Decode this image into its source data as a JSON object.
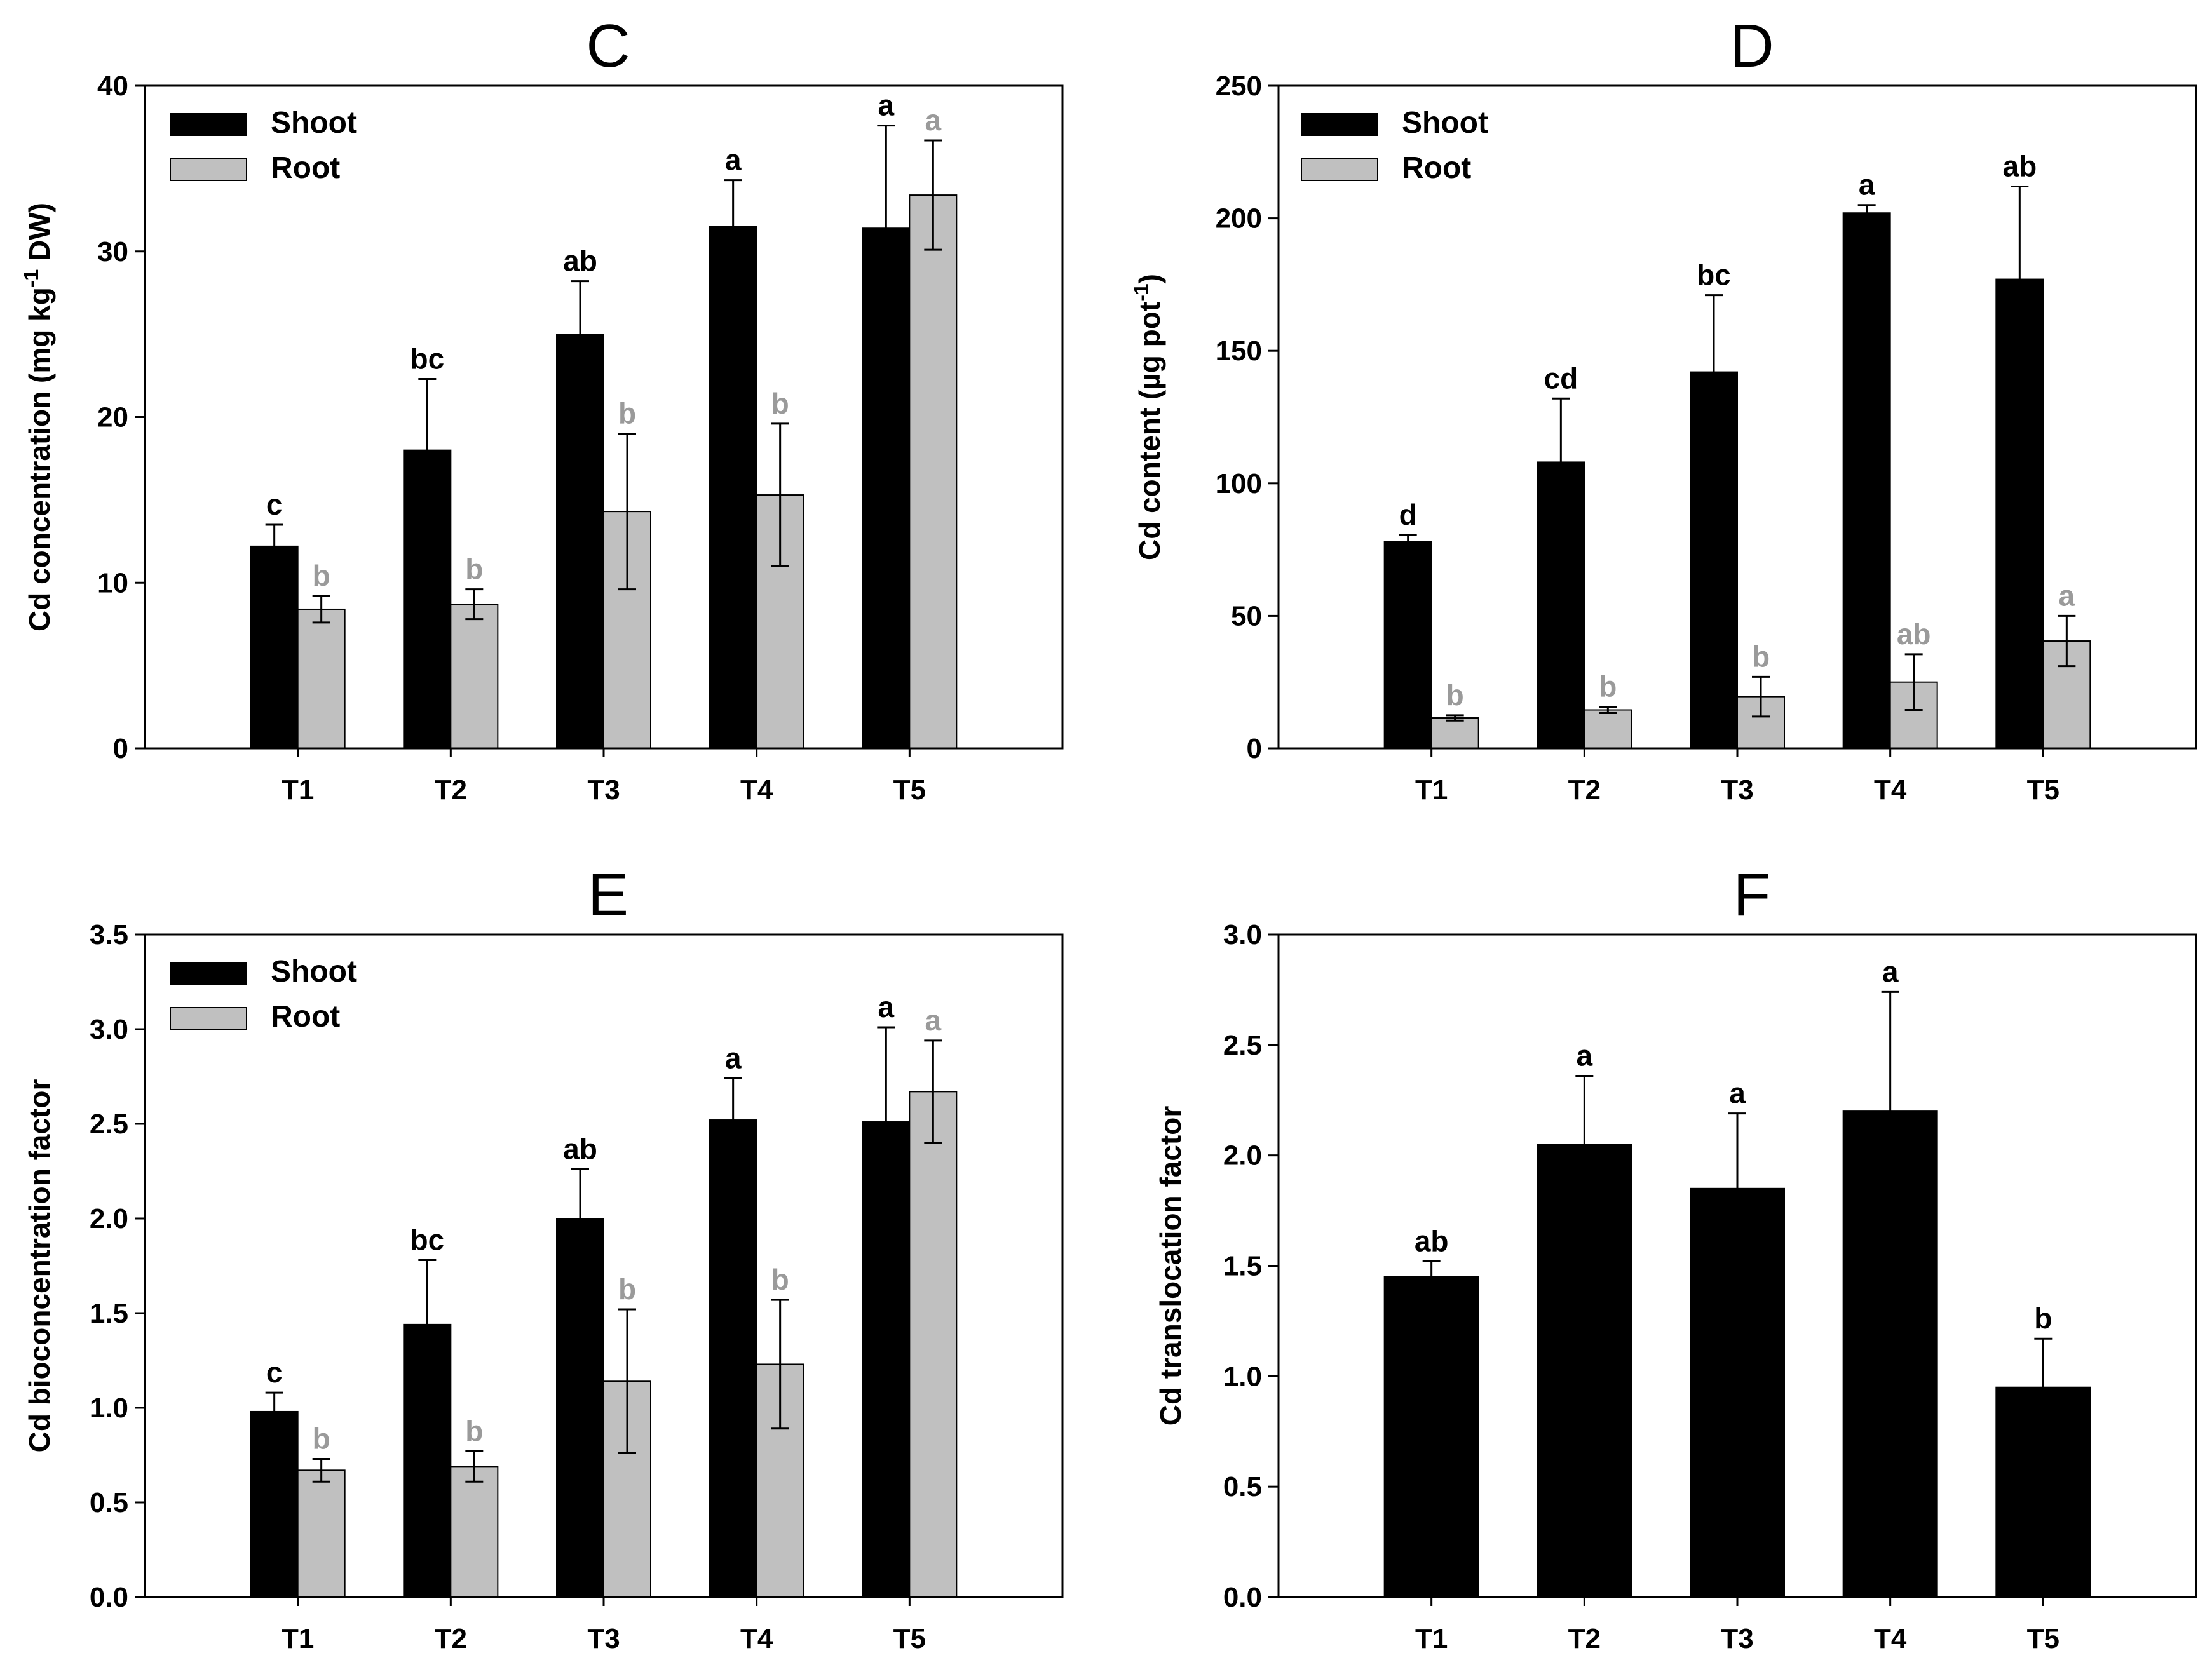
{
  "colors": {
    "shoot": "#000000",
    "root": "#c0c0c0",
    "root_letter": "#9a9a9a",
    "axis": "#000000"
  },
  "chart_data": [
    {
      "id": "C",
      "type": "bar",
      "title": "C",
      "ylabel_parts": [
        {
          "text": "Cd concentration (mg kg"
        },
        {
          "text": "-1",
          "sup": true
        },
        {
          "text": " DW)"
        }
      ],
      "categories": [
        "T1",
        "T2",
        "T3",
        "T4",
        "T5"
      ],
      "ylim": [
        0,
        40
      ],
      "yticks": [
        0,
        10,
        20,
        30,
        40
      ],
      "ytick_labels": [
        "0",
        "10",
        "20",
        "30",
        "40"
      ],
      "legend": {
        "position": "top-left",
        "entries": [
          "Shoot",
          "Root"
        ]
      },
      "series": [
        {
          "name": "Shoot",
          "values": [
            12.2,
            18.0,
            25.0,
            31.5,
            31.4
          ],
          "errors": [
            1.3,
            4.3,
            3.2,
            2.8,
            6.2
          ],
          "letters": [
            "c",
            "bc",
            "ab",
            "a",
            "a"
          ]
        },
        {
          "name": "Root",
          "values": [
            8.4,
            8.7,
            14.3,
            15.3,
            33.4
          ],
          "errors": [
            0.8,
            0.9,
            4.7,
            4.3,
            3.3
          ],
          "letters": [
            "b",
            "b",
            "b",
            "b",
            "a"
          ]
        }
      ]
    },
    {
      "id": "D",
      "type": "bar",
      "title": "D",
      "ylabel_parts": [
        {
          "text": "Cd content (µg pot"
        },
        {
          "text": "-1",
          "sup": true
        },
        {
          "text": ")"
        }
      ],
      "categories": [
        "T1",
        "T2",
        "T3",
        "T4",
        "T5"
      ],
      "ylim": [
        0,
        250
      ],
      "yticks": [
        0,
        50,
        100,
        150,
        200,
        250
      ],
      "ytick_labels": [
        "0",
        "50",
        "100",
        "150",
        "200",
        "250"
      ],
      "legend": {
        "position": "top-left",
        "entries": [
          "Shoot",
          "Root"
        ]
      },
      "series": [
        {
          "name": "Shoot",
          "values": [
            78,
            108,
            142,
            202,
            177
          ],
          "errors": [
            2.5,
            24,
            29,
            3,
            35
          ],
          "letters": [
            "d",
            "cd",
            "bc",
            "a",
            "ab"
          ]
        },
        {
          "name": "Root",
          "values": [
            11.5,
            14.5,
            19.5,
            25,
            40.5
          ],
          "errors": [
            1,
            1.2,
            7.5,
            10.5,
            9.5
          ],
          "letters": [
            "b",
            "b",
            "b",
            "ab",
            "a"
          ]
        }
      ]
    },
    {
      "id": "E",
      "type": "bar",
      "title": "E",
      "ylabel_parts": [
        {
          "text": "Cd bioconcentration factor"
        }
      ],
      "categories": [
        "T1",
        "T2",
        "T3",
        "T4",
        "T5"
      ],
      "ylim": [
        0,
        3.5
      ],
      "yticks": [
        0,
        0.5,
        1.0,
        1.5,
        2.0,
        2.5,
        3.0,
        3.5
      ],
      "ytick_labels": [
        "0.0",
        "0.5",
        "1.0",
        "1.5",
        "2.0",
        "2.5",
        "3.0",
        "3.5"
      ],
      "legend": {
        "position": "top-left",
        "entries": [
          "Shoot",
          "Root"
        ]
      },
      "series": [
        {
          "name": "Shoot",
          "values": [
            0.98,
            1.44,
            2.0,
            2.52,
            2.51
          ],
          "errors": [
            0.1,
            0.34,
            0.26,
            0.22,
            0.5
          ],
          "letters": [
            "c",
            "bc",
            "ab",
            "a",
            "a"
          ]
        },
        {
          "name": "Root",
          "values": [
            0.67,
            0.69,
            1.14,
            1.23,
            2.67
          ],
          "errors": [
            0.06,
            0.08,
            0.38,
            0.34,
            0.27
          ],
          "letters": [
            "b",
            "b",
            "b",
            "b",
            "a"
          ]
        }
      ]
    },
    {
      "id": "F",
      "type": "bar",
      "title": "F",
      "ylabel_parts": [
        {
          "text": "Cd translocation factor"
        }
      ],
      "categories": [
        "T1",
        "T2",
        "T3",
        "T4",
        "T5"
      ],
      "ylim": [
        0,
        3.0
      ],
      "yticks": [
        0,
        0.5,
        1.0,
        1.5,
        2.0,
        2.5,
        3.0
      ],
      "ytick_labels": [
        "0.0",
        "0.5",
        "1.0",
        "1.5",
        "2.0",
        "2.5",
        "3.0"
      ],
      "legend": null,
      "series": [
        {
          "name": "Shoot",
          "values": [
            1.45,
            2.05,
            1.85,
            2.2,
            0.95
          ],
          "errors": [
            0.07,
            0.31,
            0.34,
            0.54,
            0.22
          ],
          "letters": [
            "ab",
            "a",
            "a",
            "a",
            "b"
          ]
        }
      ]
    }
  ]
}
